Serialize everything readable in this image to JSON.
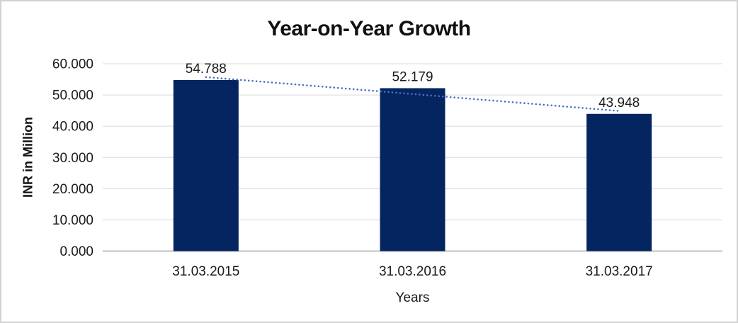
{
  "frame": {
    "background": "#ffffff",
    "border_color": "#d2d2d2"
  },
  "chart_data": {
    "type": "bar",
    "title": "Year-on-Year Growth",
    "xlabel": "Years",
    "ylabel": "INR in Million",
    "categories": [
      "31.03.2015",
      "31.03.2016",
      "31.03.2017"
    ],
    "values": [
      54.788,
      52.179,
      43.948
    ],
    "data_labels": [
      "54.788",
      "52.179",
      "43.948"
    ],
    "ylim": [
      0,
      60
    ],
    "ytick_step": 10,
    "ytick_labels": [
      "0.000",
      "10.000",
      "20.000",
      "30.000",
      "40.000",
      "50.000",
      "60.000"
    ],
    "grid": true,
    "legend": false,
    "bar_color": "#052561",
    "trendline": {
      "type": "linear",
      "style": "dotted",
      "color": "#4472C4"
    },
    "gridline_color": "#d9d9d9",
    "axisline_color": "#c0c0c0",
    "text_color": "#1a1a1a"
  }
}
